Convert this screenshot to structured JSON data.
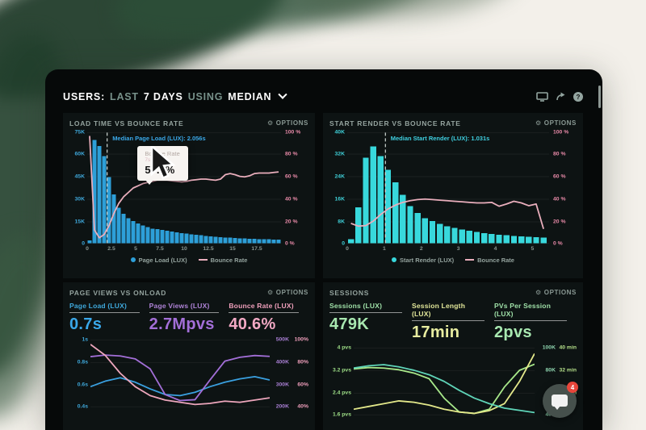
{
  "header": {
    "title": {
      "users": "USERS:",
      "last": "LAST",
      "days": "7 DAYS",
      "using": "USING",
      "median": "MEDIAN"
    }
  },
  "icons": {
    "gear": "⚙",
    "help": "?"
  },
  "colors": {
    "bar_blue": "#2d9fd8",
    "bar_cyan": "#38d8dc",
    "line_pink": "#e9aebc",
    "accent_blue": "#3aa8ea",
    "accent_purple": "#a36fd8",
    "accent_pink": "#f2a9c4",
    "accent_green": "#a8e8b0",
    "accent_yellow": "#e8eda0",
    "badge_red": "#e8453a"
  },
  "panels": {
    "load_time": {
      "title": "LOAD TIME VS BOUNCE RATE",
      "options": "OPTIONS",
      "annotation": "Median Page Load (LUX): 2.056s",
      "tooltip": {
        "title": "Bounce Rate",
        "sub": "7s",
        "value": "57.1%"
      },
      "legend": [
        "Page Load (LUX)",
        "Bounce Rate"
      ]
    },
    "start_render": {
      "title": "START RENDER VS BOUNCE RATE",
      "options": "OPTIONS",
      "annotation": "Median Start Render (LUX): 1.031s",
      "legend": [
        "Start Render (LUX)",
        "Bounce Rate"
      ]
    },
    "page_views": {
      "title": "PAGE VIEWS VS ONLOAD",
      "options": "OPTIONS",
      "metrics": [
        {
          "label": "Page Load (LUX)",
          "value": "0.7s"
        },
        {
          "label": "Page Views (LUX)",
          "value": "2.7Mpvs"
        },
        {
          "label": "Bounce Rate (LUX)",
          "value": "40.6%"
        }
      ]
    },
    "sessions": {
      "title": "SESSIONS",
      "options": "OPTIONS",
      "metrics": [
        {
          "label": "Sessions (LUX)",
          "value": "479K"
        },
        {
          "label": "Session Length (LUX)",
          "value": "17min"
        },
        {
          "label": "PVs Per Session (LUX)",
          "value": "2pvs"
        }
      ]
    }
  },
  "chat_widget": {
    "badge": "4"
  },
  "chart_data": [
    {
      "id": "load-time-vs-bounce-rate",
      "type": "bar",
      "title": "LOAD TIME VS BOUNCE RATE",
      "x_max": 20,
      "x_ticks": [
        0,
        2.5,
        5,
        7.5,
        10,
        12.5,
        15,
        17.5
      ],
      "x_unit": "seconds",
      "left_axis": {
        "labels": [
          "75K",
          "60K",
          "45K",
          "30K",
          "15K",
          "0"
        ],
        "color": "#3fa9dc",
        "fracs": [
          1,
          20,
          40,
          60,
          80,
          99
        ]
      },
      "right_axis": {
        "labels": [
          "100 %",
          "80 %",
          "60 %",
          "40 %",
          "20 %",
          "0 %"
        ],
        "color": "#e88aa8",
        "fracs": [
          1,
          20,
          40,
          60,
          80,
          99
        ]
      },
      "bars": {
        "name": "Page Load (LUX)",
        "color": "#2d9fd8",
        "x_step": 0.5,
        "ylim_k": [
          0,
          75
        ],
        "values_k": [
          2,
          70,
          66,
          59,
          45,
          33,
          24,
          20,
          17,
          15,
          13.5,
          12,
          11,
          10,
          9.5,
          9,
          8.5,
          8,
          7.5,
          7,
          6.5,
          6.2,
          5.8,
          5.4,
          5.1,
          4.8,
          4.5,
          4.2,
          4,
          3.8,
          3.6,
          3.4,
          3.2,
          3.1,
          3,
          2.9,
          2.8,
          2.7,
          2.6,
          2.5
        ]
      },
      "line": {
        "name": "Bounce Rate",
        "color": "#e9aebc",
        "ylim_pct": [
          0,
          100
        ],
        "values_pct": [
          97,
          12,
          5,
          8,
          16,
          27,
          36,
          42,
          46,
          50,
          52,
          54,
          55,
          56,
          57.1,
          57,
          57,
          56.5,
          56,
          55.5,
          56,
          57,
          57.5,
          58,
          58,
          57.5,
          57,
          58,
          62,
          63,
          62,
          60.5,
          60,
          61,
          63,
          63.5,
          63.5,
          63.5,
          64,
          64.5
        ]
      },
      "median_line": {
        "x": 2.056,
        "label": "Median Page Load (LUX): 2.056s"
      },
      "tooltip": {
        "label": "Bounce Rate",
        "sub": "7s",
        "value_pct": 57.1
      }
    },
    {
      "id": "start-render-vs-bounce-rate",
      "type": "bar",
      "title": "START RENDER VS BOUNCE RATE",
      "x_max": 5.45,
      "x_ticks": [
        0,
        1,
        2,
        3,
        4,
        5
      ],
      "x_unit": "seconds",
      "left_axis": {
        "labels": [
          "40K",
          "32K",
          "24K",
          "16K",
          "8K",
          "0"
        ],
        "color": "#3fd0d8",
        "fracs": [
          1,
          20,
          40,
          60,
          80,
          99
        ]
      },
      "right_axis": {
        "labels": [
          "100 %",
          "80 %",
          "60 %",
          "40 %",
          "20 %",
          "0 %"
        ],
        "color": "#e88aa8",
        "fracs": [
          1,
          20,
          40,
          60,
          80,
          99
        ]
      },
      "bars": {
        "name": "Start Render (LUX)",
        "color": "#38d8dc",
        "x_step": 0.2,
        "ylim_k": [
          0,
          40
        ],
        "values_k": [
          1.5,
          13,
          31,
          35,
          31.5,
          26.5,
          22,
          17.5,
          13.5,
          11,
          9,
          8,
          7,
          6.2,
          5.6,
          5,
          4.5,
          4.1,
          3.7,
          3.4,
          3.1,
          2.9,
          2.7,
          2.5,
          2.3,
          2.2,
          2
        ]
      },
      "line": {
        "name": "Bounce Rate",
        "color": "#e9aebc",
        "ylim_pct": [
          0,
          100
        ],
        "values_pct": [
          18,
          15.5,
          16,
          20,
          26,
          31,
          34.5,
          37,
          38.5,
          39.5,
          40,
          39.5,
          39,
          38.5,
          38,
          37.5,
          37,
          36.5,
          36.5,
          37,
          33.5,
          35.5,
          38,
          36.5,
          34,
          35.5,
          13
        ]
      },
      "median_line": {
        "x": 1.031,
        "label": "Median Start Render (LUX): 1.031s"
      }
    },
    {
      "id": "page-views-vs-onload",
      "type": "line",
      "title": "PAGE VIEWS VS ONLOAD",
      "grid_fracs": [
        3,
        28,
        53,
        77
      ],
      "left_axis": {
        "labels": [
          "1s",
          "0.8s",
          "0.6s",
          "0.4s"
        ],
        "color": "#3fa9dc",
        "fracs": [
          3,
          28,
          53,
          77
        ]
      },
      "right_axis": {
        "rows": [
          [
            "500K",
            "100%"
          ],
          [
            "400K",
            "80%"
          ],
          [
            "300K",
            "60%"
          ],
          [
            "200K",
            "40%"
          ]
        ],
        "colors": [
          "#a97fd4",
          "#f09fbc"
        ],
        "fracs": [
          3,
          28,
          53,
          77
        ]
      },
      "series": [
        {
          "name": "Page Load (LUX)",
          "unit": "s",
          "color": "#3aa0e0",
          "ylim": [
            0.213,
            1.024
          ],
          "values": [
            0.58,
            0.63,
            0.66,
            0.62,
            0.56,
            0.51,
            0.5,
            0.53,
            0.58,
            0.62,
            0.65,
            0.67,
            0.64
          ]
        },
        {
          "name": "Page Views (LUX)",
          "unit": "K",
          "color": "#a36fd8",
          "ylim": [
            107,
            512
          ],
          "values": [
            425,
            432,
            428,
            415,
            370,
            255,
            228,
            232,
            320,
            405,
            422,
            430,
            426
          ]
        },
        {
          "name": "Bounce Rate (LUX)",
          "unit": "%",
          "color": "#eda6bc",
          "ylim": [
            21.3,
            102.4
          ],
          "values": [
            96,
            86,
            70,
            58,
            50,
            46,
            44,
            42,
            43,
            45,
            44,
            46,
            48
          ]
        }
      ]
    },
    {
      "id": "sessions",
      "type": "line",
      "title": "SESSIONS",
      "grid_fracs": [
        3,
        28,
        53,
        77
      ],
      "left_axis": {
        "labels": [
          "4 pvs",
          "3.2 pvs",
          "2.4 pvs",
          "1.6 pvs"
        ],
        "color": "#9fe088",
        "fracs": [
          3,
          28,
          53,
          77
        ]
      },
      "right_axis": {
        "rows": [
          [
            "100K",
            "40 min"
          ],
          [
            "80K",
            "32 min"
          ],
          [
            "60K",
            "24 min"
          ],
          [
            "40K",
            ""
          ]
        ],
        "colors": [
          "#8fd6b0",
          "#b5e08a"
        ],
        "fracs": [
          3,
          28,
          53,
          77
        ]
      },
      "series": [
        {
          "name": "PVs Per Session (LUX)",
          "unit": "pvs",
          "color": "#a8e88a",
          "ylim": [
            0.85,
            4.1
          ],
          "values": [
            3.25,
            3.3,
            3.28,
            3.22,
            3.1,
            2.9,
            2.2,
            1.7,
            1.65,
            1.8,
            2.6,
            3.2,
            3.42
          ]
        },
        {
          "name": "Session Length (LUX)",
          "unit": "min",
          "color": "#e3e88a",
          "ylim": [
            8.5,
            41
          ],
          "values": [
            18,
            19,
            20,
            21,
            20.5,
            19.5,
            18,
            17,
            16.5,
            17.5,
            20,
            28,
            38
          ]
        },
        {
          "name": "Sessions (LUX)",
          "unit": "K",
          "color": "#5fd4b8",
          "ylim": [
            21.3,
            102.4
          ],
          "values": [
            82,
            84,
            85,
            83,
            80,
            76,
            70,
            62,
            55,
            50,
            46,
            44,
            42
          ]
        }
      ]
    }
  ]
}
